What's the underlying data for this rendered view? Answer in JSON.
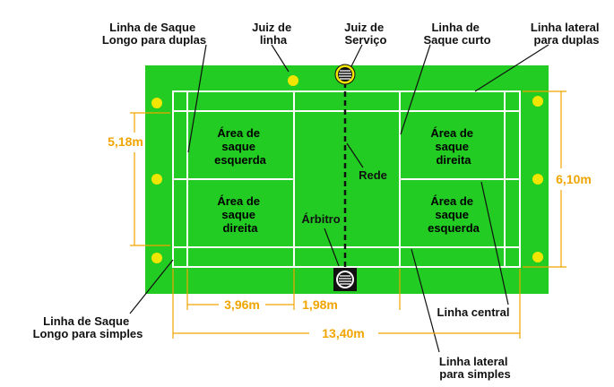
{
  "colors": {
    "court": "#22cc22",
    "lines": "#ffffff",
    "dimension": "#f0a500",
    "official": "#f2e600",
    "leader": "#111111"
  },
  "labels": {
    "long_service_doubles": [
      "Linha de Saque",
      "Longo para duplas"
    ],
    "line_judge": [
      "Juiz de",
      "linha"
    ],
    "service_judge": [
      "Juiz de",
      "Serviço"
    ],
    "short_service": [
      "Linha de",
      "Saque curto"
    ],
    "side_doubles": [
      "Linha lateral",
      "para duplas"
    ],
    "net": "Rede",
    "umpire": "Árbitro",
    "long_service_singles": [
      "Linha de Saque",
      "Longo para simples"
    ],
    "center_line": "Linha central",
    "side_singles": [
      "Linha lateral",
      "para simples"
    ]
  },
  "zones": {
    "left_top": [
      "Área de",
      "saque",
      "esquerda"
    ],
    "left_bottom": [
      "Área de",
      "saque",
      "direita"
    ],
    "right_top": [
      "Área de",
      "saque",
      "direita"
    ],
    "right_bottom": [
      "Área de",
      "saque",
      "esquerda"
    ]
  },
  "dimensions": {
    "singles_width": "5,18m",
    "doubles_width": "6,10m",
    "service_depth": "3,96m",
    "short_service_distance": "1,98m",
    "court_length": "13,40m"
  },
  "icons": {
    "official": "yellow-circle",
    "service_judge_seat": "striped-circle-icon",
    "umpire_seat": "striped-circle-icon"
  }
}
